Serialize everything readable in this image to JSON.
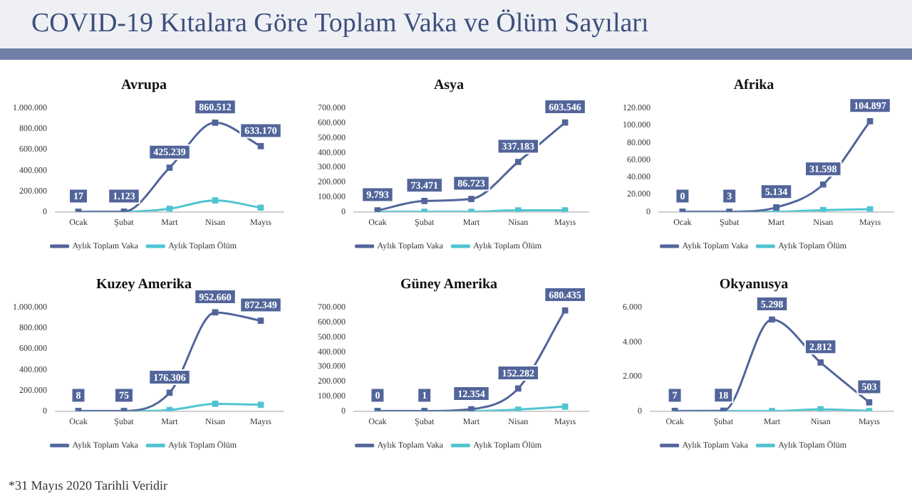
{
  "chart_data": [
    {
      "type": "other",
      "title": "COVID-19 Kıtalara Göre Toplam Vaka ve Ölüm Sayıları",
      "annotations": [
        "*31 Mayıs 2020 Tarihli Veridir"
      ]
    },
    {
      "type": "line",
      "title": "Avrupa",
      "categories": [
        "Ocak",
        "Şubat",
        "Mart",
        "Nisan",
        "Mayıs"
      ],
      "legend": "bottom",
      "marker": "square",
      "ylim": [
        0,
        1000000
      ],
      "yticks": [
        {
          "value": 0,
          "label": "0"
        },
        {
          "value": 200000,
          "label": "200.000"
        },
        {
          "value": 400000,
          "label": "400.000"
        },
        {
          "value": 600000,
          "label": "600.000"
        },
        {
          "value": 800000,
          "label": "800.000"
        },
        {
          "value": 1000000,
          "label": "1.000.000"
        }
      ],
      "series": [
        {
          "name": "Aylık Toplam Vaka",
          "color": "#52659a",
          "values": [
            17,
            1123,
            425239,
            860512,
            633170
          ],
          "value_labels": [
            "17",
            "1.123",
            "425.239",
            "860.512",
            "633.170"
          ]
        },
        {
          "name": "Aylık Toplam Ölüm",
          "color": "#4fc4d0",
          "values": [
            0,
            0,
            30000,
            110000,
            40000
          ]
        }
      ]
    },
    {
      "type": "line",
      "title": "Asya",
      "categories": [
        "Ocak",
        "Şubat",
        "Mart",
        "Nisan",
        "Mayıs"
      ],
      "legend": "bottom",
      "marker": "square",
      "ylim": [
        0,
        700000
      ],
      "yticks": [
        {
          "value": 0,
          "label": "0"
        },
        {
          "value": 100000,
          "label": "100.000"
        },
        {
          "value": 200000,
          "label": "200.000"
        },
        {
          "value": 300000,
          "label": "300.000"
        },
        {
          "value": 400000,
          "label": "400.000"
        },
        {
          "value": 500000,
          "label": "500.000"
        },
        {
          "value": 600000,
          "label": "600.000"
        },
        {
          "value": 700000,
          "label": "700.000"
        }
      ],
      "series": [
        {
          "name": "Aylık Toplam Vaka",
          "color": "#52659a",
          "values": [
            9793,
            73471,
            86723,
            337183,
            603546
          ],
          "value_labels": [
            "9.793",
            "73.471",
            "86.723",
            "337.183",
            "603.546"
          ]
        },
        {
          "name": "Aylık Toplam Ölüm",
          "color": "#4fc4d0",
          "values": [
            0,
            0,
            0,
            10000,
            10000
          ]
        }
      ]
    },
    {
      "type": "line",
      "title": "Afrika",
      "categories": [
        "Ocak",
        "Şubat",
        "Mart",
        "Nisan",
        "Mayıs"
      ],
      "legend": "bottom",
      "marker": "square",
      "ylim": [
        0,
        120000
      ],
      "yticks": [
        {
          "value": 0,
          "label": "0"
        },
        {
          "value": 20000,
          "label": "20.000"
        },
        {
          "value": 40000,
          "label": "40.000"
        },
        {
          "value": 60000,
          "label": "60.000"
        },
        {
          "value": 80000,
          "label": "80.000"
        },
        {
          "value": 100000,
          "label": "100.000"
        },
        {
          "value": 120000,
          "label": "120.000"
        }
      ],
      "series": [
        {
          "name": "Aylık Toplam Vaka",
          "color": "#52659a",
          "values": [
            0,
            3,
            5134,
            31598,
            104897
          ],
          "value_labels": [
            "0",
            "3",
            "5.134",
            "31.598",
            "104.897"
          ]
        },
        {
          "name": "Aylık Toplam Ölüm",
          "color": "#4fc4d0",
          "values": [
            0,
            0,
            0,
            2000,
            3000
          ]
        }
      ]
    },
    {
      "type": "line",
      "title": "Kuzey Amerika",
      "categories": [
        "Ocak",
        "Şubat",
        "Mart",
        "Nisan",
        "Mayıs"
      ],
      "legend": "bottom",
      "marker": "square",
      "ylim": [
        0,
        1000000
      ],
      "yticks": [
        {
          "value": 0,
          "label": "0"
        },
        {
          "value": 200000,
          "label": "200.000"
        },
        {
          "value": 400000,
          "label": "400.000"
        },
        {
          "value": 600000,
          "label": "600.000"
        },
        {
          "value": 800000,
          "label": "800.000"
        },
        {
          "value": 1000000,
          "label": "1.000.000"
        }
      ],
      "series": [
        {
          "name": "Aylık Toplam Vaka",
          "color": "#52659a",
          "values": [
            8,
            75,
            176306,
            952660,
            872349
          ],
          "value_labels": [
            "8",
            "75",
            "176.306",
            "952.660",
            "872.349"
          ]
        },
        {
          "name": "Aylık Toplam Ölüm",
          "color": "#4fc4d0",
          "values": [
            0,
            0,
            10000,
            70000,
            60000
          ]
        }
      ]
    },
    {
      "type": "line",
      "title": "Güney Amerika",
      "categories": [
        "Ocak",
        "Şubat",
        "Mart",
        "Nisan",
        "Mayıs"
      ],
      "legend": "bottom",
      "marker": "square",
      "ylim": [
        0,
        700000
      ],
      "yticks": [
        {
          "value": 0,
          "label": "0"
        },
        {
          "value": 100000,
          "label": "100.000"
        },
        {
          "value": 200000,
          "label": "200.000"
        },
        {
          "value": 300000,
          "label": "300.000"
        },
        {
          "value": 400000,
          "label": "400.000"
        },
        {
          "value": 500000,
          "label": "500.000"
        },
        {
          "value": 600000,
          "label": "600.000"
        },
        {
          "value": 700000,
          "label": "700.000"
        }
      ],
      "series": [
        {
          "name": "Aylık Toplam Vaka",
          "color": "#52659a",
          "values": [
            0,
            1,
            12354,
            152282,
            680435
          ],
          "value_labels": [
            "0",
            "1",
            "12.354",
            "152.282",
            "680.435"
          ]
        },
        {
          "name": "Aylık Toplam Ölüm",
          "color": "#4fc4d0",
          "values": [
            0,
            0,
            0,
            10000,
            30000
          ]
        }
      ]
    },
    {
      "type": "line",
      "title": "Okyanusya",
      "categories": [
        "Ocak",
        "Şubat",
        "Mart",
        "Nisan",
        "Mayıs"
      ],
      "legend": "bottom",
      "marker": "square",
      "ylim": [
        0,
        6000
      ],
      "yticks": [
        {
          "value": 0,
          "label": "0"
        },
        {
          "value": 2000,
          "label": "2.000"
        },
        {
          "value": 4000,
          "label": "4.000"
        },
        {
          "value": 6000,
          "label": "6.000"
        }
      ],
      "series": [
        {
          "name": "Aylık Toplam Vaka",
          "color": "#52659a",
          "values": [
            7,
            18,
            5298,
            2812,
            503
          ],
          "value_labels": [
            "7",
            "18",
            "5.298",
            "2.812",
            "503"
          ]
        },
        {
          "name": "Aylık Toplam Ölüm",
          "color": "#4fc4d0",
          "values": [
            0,
            0,
            0,
            100,
            0
          ]
        }
      ]
    }
  ]
}
